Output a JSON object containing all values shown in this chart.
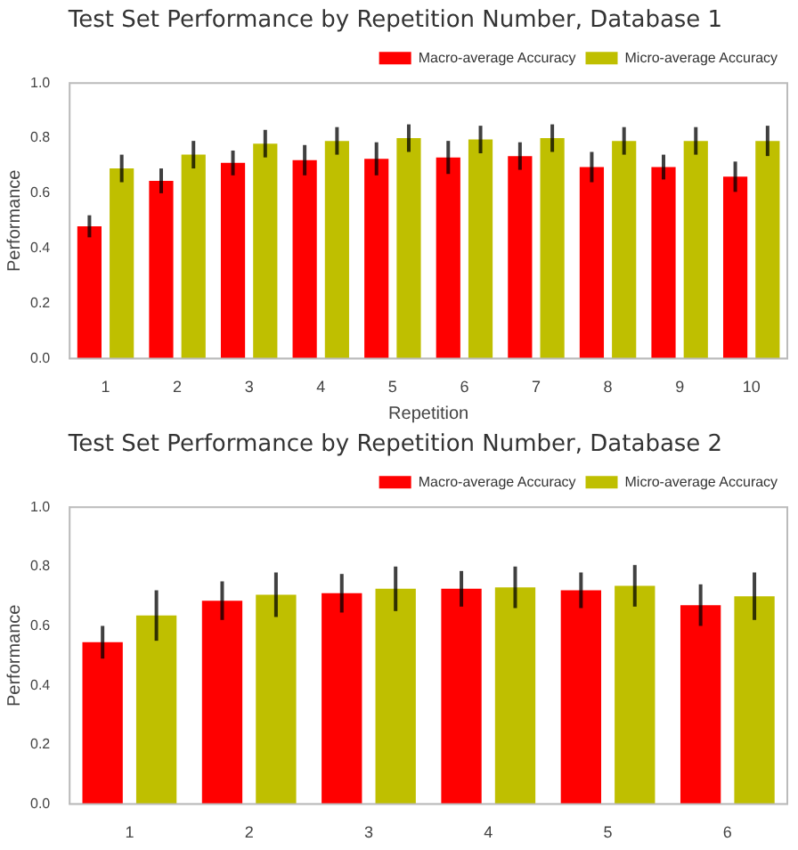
{
  "chart_data": [
    {
      "type": "bar",
      "title": "Test Set Performance by Repetition Number, Database 1",
      "xlabel": "Repetition",
      "ylabel": "Performance",
      "categories": [
        "1",
        "2",
        "3",
        "4",
        "5",
        "6",
        "7",
        "8",
        "9",
        "10"
      ],
      "ylim": [
        0,
        1
      ],
      "yticks": [
        {
          "value": 0,
          "label": "0.0"
        },
        {
          "value": 0.2,
          "label": "0.2"
        },
        {
          "value": 0.4,
          "label": "0.4"
        },
        {
          "value": 0.6,
          "label": "0.6"
        },
        {
          "value": 0.8,
          "label": "0.8"
        },
        {
          "value": 1,
          "label": "1.0"
        }
      ],
      "grid": false,
      "legend": "top right",
      "series": [
        {
          "name": "Macro-average Accuracy",
          "color": "#ff0000",
          "values": [
            0.48,
            0.645,
            0.71,
            0.72,
            0.725,
            0.73,
            0.735,
            0.695,
            0.695,
            0.66
          ],
          "errors": [
            0.04,
            0.045,
            0.045,
            0.055,
            0.06,
            0.06,
            0.05,
            0.055,
            0.045,
            0.055
          ]
        },
        {
          "name": "Micro-average Accuracy",
          "color": "#bfbf00",
          "values": [
            0.69,
            0.74,
            0.78,
            0.79,
            0.8,
            0.795,
            0.8,
            0.79,
            0.79,
            0.79
          ],
          "errors": [
            0.05,
            0.05,
            0.05,
            0.05,
            0.05,
            0.05,
            0.05,
            0.05,
            0.05,
            0.055
          ]
        }
      ]
    },
    {
      "type": "bar",
      "title": "Test Set Performance by Repetition Number, Database 2",
      "ylabel": "Performance",
      "categories": [
        "1",
        "2",
        "3",
        "4",
        "5",
        "6"
      ],
      "ylim": [
        0,
        1
      ],
      "yticks": [
        {
          "value": 0,
          "label": "0.0"
        },
        {
          "value": 0.2,
          "label": "0.2"
        },
        {
          "value": 0.4,
          "label": "0.4"
        },
        {
          "value": 0.6,
          "label": "0.6"
        },
        {
          "value": 0.8,
          "label": "0.8"
        },
        {
          "value": 1,
          "label": "1.0"
        }
      ],
      "grid": false,
      "legend": "top right",
      "series": [
        {
          "name": "Macro-average Accuracy",
          "color": "#ff0000",
          "values": [
            0.545,
            0.685,
            0.71,
            0.725,
            0.72,
            0.67
          ],
          "errors": [
            0.055,
            0.065,
            0.065,
            0.06,
            0.06,
            0.07
          ]
        },
        {
          "name": "Micro-average Accuracy",
          "color": "#bfbf00",
          "values": [
            0.635,
            0.705,
            0.725,
            0.73,
            0.735,
            0.7
          ],
          "errors": [
            0.085,
            0.075,
            0.075,
            0.07,
            0.07,
            0.08
          ]
        }
      ]
    }
  ]
}
